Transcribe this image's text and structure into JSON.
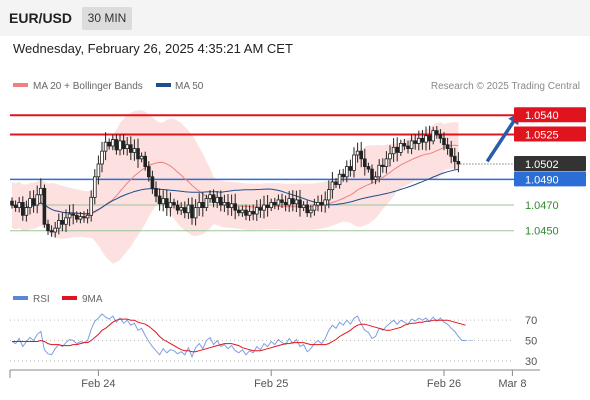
{
  "header": {
    "symbol": "EUR/USD",
    "timeframe": "30 MIN",
    "datetime": "Wednesday, February 26, 2025 4:35:21 AM CET"
  },
  "chart_data": [
    {
      "type": "candlestick",
      "title": "",
      "legend": [
        {
          "name": "MA 20 + Bollinger Bands",
          "color": "#f08080"
        },
        {
          "name": "MA 50",
          "color": "#1f4e8c"
        }
      ],
      "credit": "Research © 2025 Trading Central",
      "ylim": [
        1.041,
        1.0555
      ],
      "last_price": "1.0502",
      "x_ticks": [
        {
          "label": "Feb 24",
          "index": 24
        },
        {
          "label": "Feb 25",
          "index": 72
        },
        {
          "label": "Feb 26",
          "index": 120
        },
        {
          "label": "Mar 8",
          "index": 139
        }
      ],
      "levels": [
        {
          "value": 1.054,
          "label": "1.0540",
          "color": "#e0141e",
          "style": "tag"
        },
        {
          "value": 1.0525,
          "label": "1.0525",
          "color": "#e0141e",
          "style": "tag"
        },
        {
          "value": 1.049,
          "label": "1.0490",
          "color": "#2b6fd6",
          "style": "tag"
        },
        {
          "value": 1.047,
          "label": "1.0470",
          "color": "#2e8b2e",
          "style": "text"
        },
        {
          "value": 1.045,
          "label": "1.0450",
          "color": "#2e8b2e",
          "style": "text"
        }
      ],
      "projection": {
        "from": [
          132,
          1.0504
        ],
        "to": [
          140,
          1.0538
        ],
        "color": "#2a5caa"
      },
      "candles_close": [
        1.047,
        1.0468,
        1.0472,
        1.0462,
        1.0468,
        1.0475,
        1.047,
        1.0478,
        1.0483,
        1.0455,
        1.045,
        1.0449,
        1.0452,
        1.0458,
        1.0455,
        1.046,
        1.0463,
        1.0462,
        1.0459,
        1.0461,
        1.046,
        1.0462,
        1.0476,
        1.0492,
        1.0502,
        1.0512,
        1.0519,
        1.0516,
        1.0521,
        1.0513,
        1.052,
        1.0514,
        1.0517,
        1.0511,
        1.0514,
        1.0506,
        1.0508,
        1.05,
        1.0492,
        1.0483,
        1.0477,
        1.0471,
        1.0475,
        1.0468,
        1.0472,
        1.047,
        1.0466,
        1.0468,
        1.0464,
        1.047,
        1.046,
        1.0468,
        1.0472,
        1.0468,
        1.0475,
        1.0478,
        1.0472,
        1.0476,
        1.047,
        1.0472,
        1.0468,
        1.0471,
        1.0466,
        1.0464,
        1.0466,
        1.0462,
        1.0465,
        1.0463,
        1.0468,
        1.0466,
        1.047,
        1.0468,
        1.0472,
        1.047,
        1.0474,
        1.0472,
        1.047,
        1.0475,
        1.0471,
        1.0474,
        1.0468,
        1.047,
        1.0464,
        1.0466,
        1.047,
        1.0472,
        1.047,
        1.0474,
        1.0482,
        1.0488,
        1.0486,
        1.0494,
        1.0492,
        1.05,
        1.0497,
        1.0509,
        1.0512,
        1.0506,
        1.05,
        1.0498,
        1.049,
        1.0492,
        1.0501,
        1.05,
        1.0506,
        1.051,
        1.0515,
        1.0511,
        1.0518,
        1.0516,
        1.0514,
        1.052,
        1.0518,
        1.0522,
        1.0519,
        1.0524,
        1.052,
        1.0528,
        1.0525,
        1.0522,
        1.0517,
        1.0514,
        1.0508,
        1.0504,
        1.0502
      ]
    },
    {
      "type": "line",
      "title": "",
      "legend": [
        {
          "name": "RSI",
          "color": "#5b86d8"
        },
        {
          "name": "9MA",
          "color": "#e0141e"
        }
      ],
      "ylim": [
        25,
        78
      ],
      "y_ticks": [
        70,
        50,
        30
      ],
      "rsi": [
        49,
        47,
        52,
        44,
        49,
        53,
        50,
        56,
        59,
        41,
        37,
        36,
        42,
        46,
        44,
        48,
        51,
        50,
        47,
        49,
        48,
        50,
        61,
        69,
        72,
        76,
        73,
        71,
        74,
        68,
        72,
        67,
        70,
        65,
        67,
        60,
        62,
        55,
        49,
        44,
        40,
        36,
        42,
        38,
        41,
        40,
        37,
        39,
        36,
        43,
        34,
        43,
        47,
        42,
        50,
        53,
        46,
        50,
        44,
        46,
        42,
        45,
        40,
        38,
        41,
        36,
        40,
        38,
        44,
        41,
        47,
        44,
        49,
        46,
        51,
        48,
        46,
        52,
        47,
        51,
        44,
        46,
        39,
        42,
        47,
        50,
        47,
        52,
        60,
        65,
        62,
        68,
        65,
        70,
        66,
        72,
        74,
        66,
        60,
        58,
        52,
        54,
        62,
        60,
        64,
        67,
        70,
        66,
        70,
        68,
        66,
        71,
        69,
        72,
        70,
        72,
        69,
        73,
        69,
        72,
        68,
        66,
        62,
        59,
        54,
        50,
        50
      ],
      "rsi_ma": [
        49,
        49,
        49,
        49,
        49,
        49,
        49,
        49,
        50,
        49,
        47,
        46,
        46,
        46,
        45,
        45,
        45,
        46,
        46,
        47,
        48,
        48,
        50,
        53,
        56,
        60,
        62,
        65,
        68,
        70,
        71,
        71,
        71,
        70,
        70,
        68,
        67,
        66,
        64,
        61,
        58,
        54,
        51,
        49,
        47,
        45,
        43,
        41,
        40,
        40,
        39,
        39,
        40,
        41,
        42,
        43,
        44,
        45,
        46,
        47,
        47,
        47,
        46,
        45,
        43,
        42,
        41,
        40,
        40,
        40,
        41,
        42,
        43,
        44,
        45,
        46,
        47,
        47,
        48,
        48,
        48,
        48,
        47,
        46,
        46,
        46,
        46,
        46,
        47,
        49,
        51,
        54,
        56,
        58,
        60,
        63,
        65,
        66,
        66,
        65,
        64,
        63,
        62,
        61,
        60,
        60,
        61,
        62,
        63,
        65,
        66,
        67,
        67,
        68,
        68,
        69,
        69,
        70,
        70,
        70,
        70,
        70,
        69,
        68,
        67,
        66,
        65
      ]
    }
  ]
}
